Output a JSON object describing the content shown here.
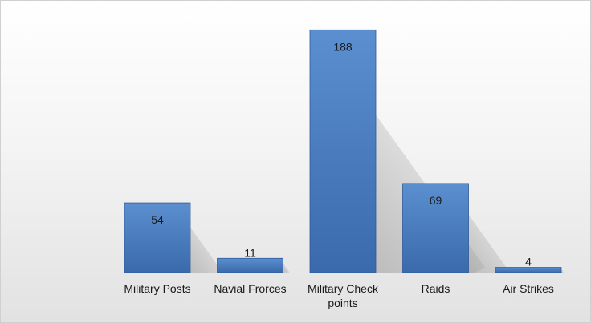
{
  "chart_data": {
    "type": "bar",
    "categories": [
      "Military Posts",
      "Navial Frorces",
      "Military Check points",
      "Raids",
      "Air Strikes"
    ],
    "category_lines": [
      [
        "Military Posts"
      ],
      [
        "Navial Frorces"
      ],
      [
        "Military Check",
        "points"
      ],
      [
        "Raids"
      ],
      [
        "Air Strikes"
      ]
    ],
    "values": [
      54,
      11,
      188,
      69,
      4
    ],
    "value_labels": [
      "54",
      "11",
      "188",
      "69",
      "4"
    ],
    "ylim": [
      0,
      200
    ],
    "grid": false,
    "legend": "none",
    "colors": {
      "bar_top": "#5b8fd0",
      "bar_bottom": "#3a6aab",
      "bar_edge": "#2f5b96",
      "shadow": "#9a9a9a"
    }
  }
}
